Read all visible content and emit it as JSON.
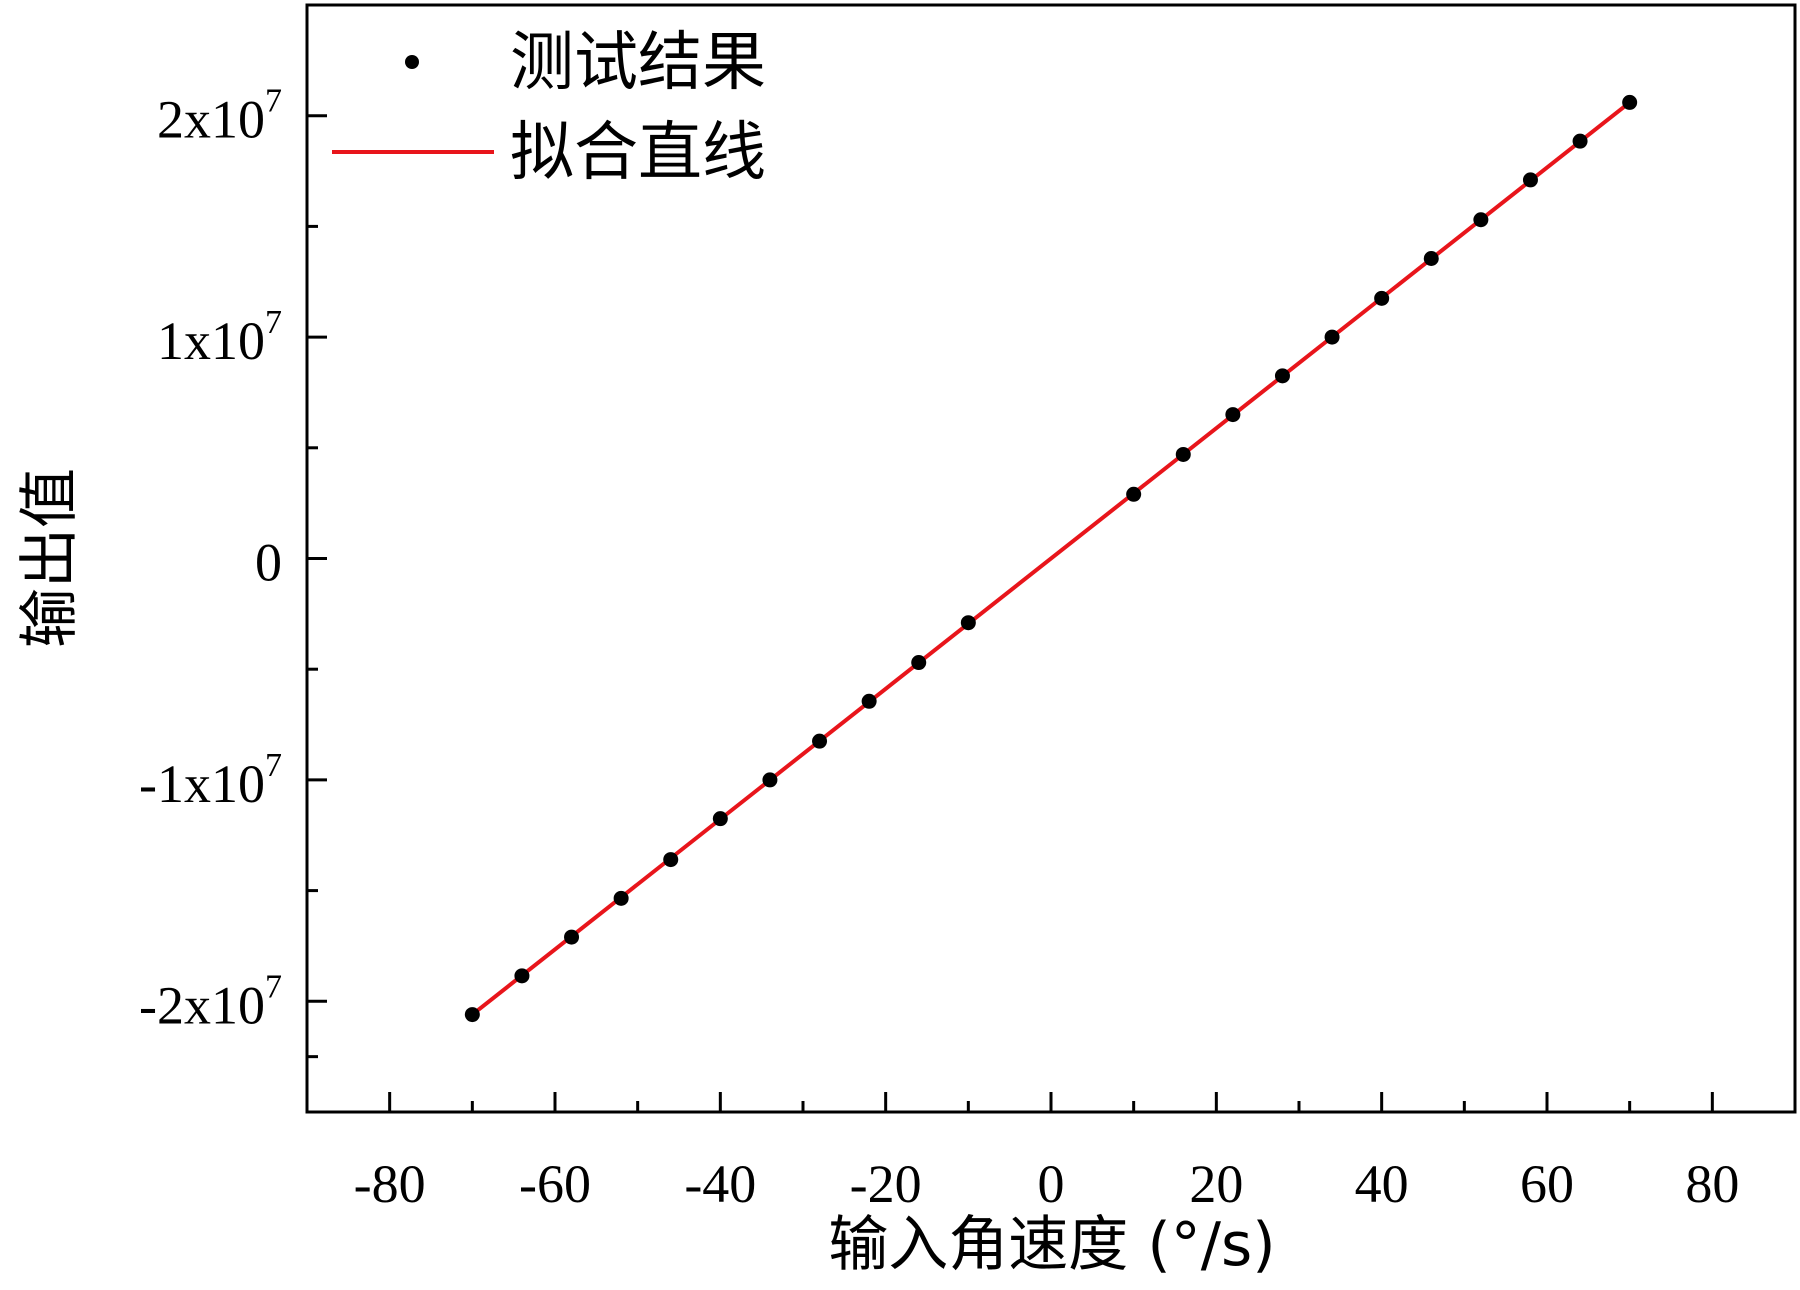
{
  "chart_data": {
    "type": "scatter",
    "xlabel": "输入角速度 (°/s)",
    "ylabel": "输出值",
    "xlim": [
      -90,
      90
    ],
    "ylim": [
      -25000000,
      25000000
    ],
    "x_ticks": [
      -80,
      -60,
      -40,
      -20,
      0,
      20,
      40,
      60,
      80
    ],
    "x_tick_labels": [
      "-80",
      "-60",
      "-40",
      "-20",
      "0",
      "20",
      "40",
      "60",
      "80"
    ],
    "y_ticks": [
      -20000000,
      -10000000,
      0,
      10000000,
      20000000
    ],
    "y_tick_labels": [
      {
        "mantissa": "-2x10",
        "exp": "7"
      },
      {
        "mantissa": "-1x10",
        "exp": "7"
      },
      {
        "mantissa": "0",
        "exp": ""
      },
      {
        "mantissa": "1x10",
        "exp": "7"
      },
      {
        "mantissa": "2x10",
        "exp": "7"
      }
    ],
    "legend_position": "top-left",
    "grid": false,
    "series": [
      {
        "name": "测试结果",
        "kind": "scatter",
        "color": "#000000",
        "x": [
          -70,
          -64,
          -58,
          -52,
          -46,
          -40,
          -34,
          -28,
          -22,
          -16,
          -10,
          10,
          16,
          22,
          28,
          34,
          40,
          46,
          52,
          58,
          64,
          70
        ],
        "y": [
          -20600000,
          -18850000,
          -17100000,
          -15350000,
          -13600000,
          -11750000,
          -10000000,
          -8250000,
          -6450000,
          -4700000,
          -2900000,
          2900000,
          4700000,
          6500000,
          8250000,
          10000000,
          11750000,
          13550000,
          15300000,
          17100000,
          18850000,
          20600000
        ]
      },
      {
        "name": "拟合直线",
        "kind": "line",
        "color": "#e8151b",
        "x": [
          -70,
          70
        ],
        "y": [
          -20600000,
          20600000
        ]
      }
    ]
  }
}
